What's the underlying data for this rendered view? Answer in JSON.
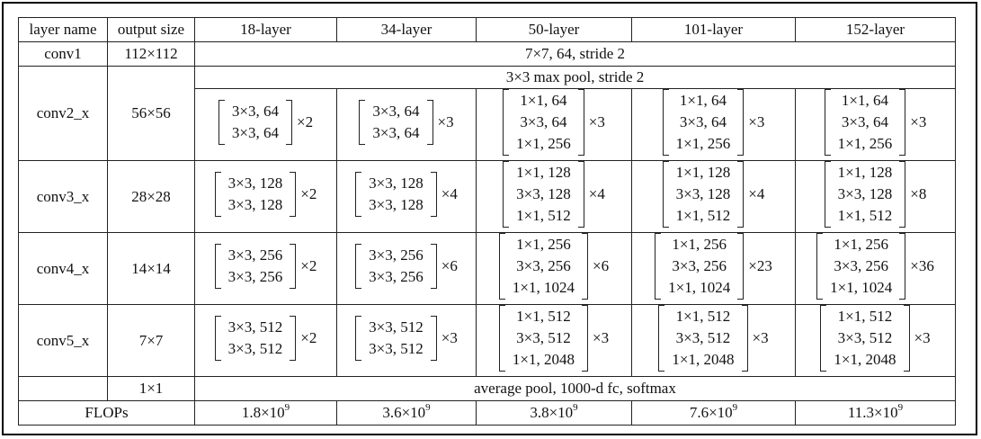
{
  "headers": [
    "layer name",
    "output size",
    "18-layer",
    "34-layer",
    "50-layer",
    "101-layer",
    "152-layer"
  ],
  "conv1": {
    "name": "conv1",
    "size": "112×112",
    "spec": "7×7, 64, stride 2"
  },
  "pool": {
    "spec": "3×3 max pool, stride 2"
  },
  "blocks": [
    {
      "name": "conv2_x",
      "size": "56×56",
      "cells": [
        {
          "lines": [
            "3×3, 64",
            "3×3, 64"
          ],
          "rep": "×2"
        },
        {
          "lines": [
            "3×3, 64",
            "3×3, 64"
          ],
          "rep": "×3"
        },
        {
          "lines": [
            "1×1, 64",
            "3×3, 64",
            "1×1, 256"
          ],
          "rep": "×3"
        },
        {
          "lines": [
            "1×1, 64",
            "3×3, 64",
            "1×1, 256"
          ],
          "rep": "×3"
        },
        {
          "lines": [
            "1×1, 64",
            "3×3, 64",
            "1×1, 256"
          ],
          "rep": "×3"
        }
      ]
    },
    {
      "name": "conv3_x",
      "size": "28×28",
      "cells": [
        {
          "lines": [
            "3×3, 128",
            "3×3, 128"
          ],
          "rep": "×2"
        },
        {
          "lines": [
            "3×3, 128",
            "3×3, 128"
          ],
          "rep": "×4"
        },
        {
          "lines": [
            "1×1, 128",
            "3×3, 128",
            "1×1, 512"
          ],
          "rep": "×4"
        },
        {
          "lines": [
            "1×1, 128",
            "3×3, 128",
            "1×1, 512"
          ],
          "rep": "×4"
        },
        {
          "lines": [
            "1×1, 128",
            "3×3, 128",
            "1×1, 512"
          ],
          "rep": "×8"
        }
      ]
    },
    {
      "name": "conv4_x",
      "size": "14×14",
      "cells": [
        {
          "lines": [
            "3×3, 256",
            "3×3, 256"
          ],
          "rep": "×2"
        },
        {
          "lines": [
            "3×3, 256",
            "3×3, 256"
          ],
          "rep": "×6"
        },
        {
          "lines": [
            "1×1, 256",
            "3×3, 256",
            "1×1, 1024"
          ],
          "rep": "×6"
        },
        {
          "lines": [
            "1×1, 256",
            "3×3, 256",
            "1×1, 1024"
          ],
          "rep": "×23"
        },
        {
          "lines": [
            "1×1, 256",
            "3×3, 256",
            "1×1, 1024"
          ],
          "rep": "×36"
        }
      ]
    },
    {
      "name": "conv5_x",
      "size": "7×7",
      "cells": [
        {
          "lines": [
            "3×3, 512",
            "3×3, 512"
          ],
          "rep": "×2"
        },
        {
          "lines": [
            "3×3, 512",
            "3×3, 512"
          ],
          "rep": "×3"
        },
        {
          "lines": [
            "1×1, 512",
            "3×3, 512",
            "1×1, 2048"
          ],
          "rep": "×3"
        },
        {
          "lines": [
            "1×1, 512",
            "3×3, 512",
            "1×1, 2048"
          ],
          "rep": "×3"
        },
        {
          "lines": [
            "1×1, 512",
            "3×3, 512",
            "1×1, 2048"
          ],
          "rep": "×3"
        }
      ]
    }
  ],
  "avg": {
    "size": "1×1",
    "spec": "average pool, 1000-d fc, softmax"
  },
  "flops": {
    "label": "FLOPs",
    "values": [
      {
        "mantissa": "1.8×10",
        "exp": "9"
      },
      {
        "mantissa": "3.6×10",
        "exp": "9"
      },
      {
        "mantissa": "3.8×10",
        "exp": "9"
      },
      {
        "mantissa": "7.6×10",
        "exp": "9"
      },
      {
        "mantissa": "11.3×10",
        "exp": "9"
      }
    ]
  }
}
